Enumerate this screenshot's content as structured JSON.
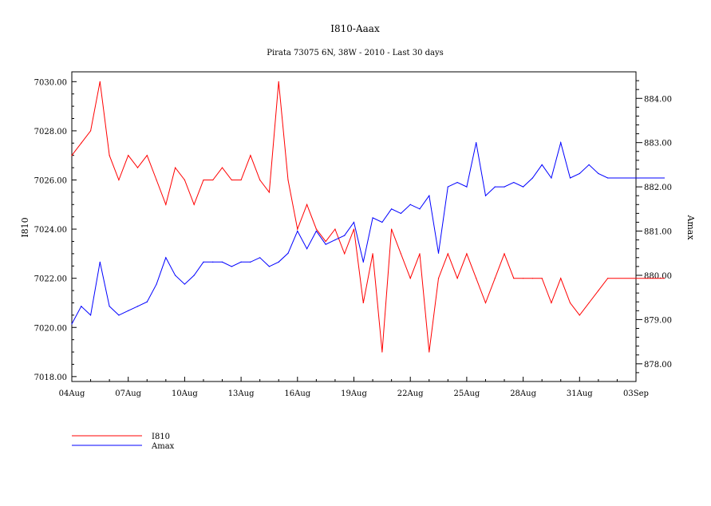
{
  "chart_data": {
    "type": "line",
    "title": "I810-Aaax",
    "subtitle": "Pirata 73075 6N, 38W - 2010 - Last 30 days",
    "xlabel": "",
    "ylabel": "I810",
    "y2label": "Amax",
    "xlim": [
      0,
      30
    ],
    "x_unit": "days since 04Aug",
    "xticks": [
      {
        "x": 0,
        "label": "04Aug"
      },
      {
        "x": 3,
        "label": "07Aug"
      },
      {
        "x": 6,
        "label": "10Aug"
      },
      {
        "x": 9,
        "label": "13Aug"
      },
      {
        "x": 12,
        "label": "16Aug"
      },
      {
        "x": 15,
        "label": "19Aug"
      },
      {
        "x": 18,
        "label": "22Aug"
      },
      {
        "x": 21,
        "label": "25Aug"
      },
      {
        "x": 24,
        "label": "28Aug"
      },
      {
        "x": 27,
        "label": "31Aug"
      },
      {
        "x": 30,
        "label": "03Sep"
      }
    ],
    "ylim": [
      7017.8,
      7030.4
    ],
    "yticks": [
      "7018.00",
      "7020.00",
      "7022.00",
      "7024.00",
      "7026.00",
      "7028.00",
      "7030.00"
    ],
    "y2lim": [
      877.6,
      884.6
    ],
    "y2ticks": [
      "878.00",
      "879.00",
      "880.00",
      "881.00",
      "882.00",
      "883.00",
      "884.00"
    ],
    "legend_position": "bottom-left",
    "series": [
      {
        "name": "I810",
        "axis": "left",
        "color": "#ff0000",
        "x": [
          0,
          0.5,
          1,
          1.5,
          2,
          2.5,
          3,
          3.5,
          4,
          4.5,
          5,
          5.5,
          6,
          6.5,
          7,
          7.5,
          8,
          8.5,
          9,
          9.5,
          10,
          10.5,
          11,
          11.5,
          12,
          12.5,
          13,
          13.5,
          14,
          14.5,
          15,
          15.5,
          16,
          16.5,
          17,
          17.5,
          18,
          18.5,
          19,
          19.5,
          20,
          20.5,
          21,
          21.5,
          22,
          22.5,
          23,
          23.5,
          24,
          24.5,
          25,
          25.5,
          26,
          26.5,
          27,
          27.5,
          28,
          28.5,
          31.5
        ],
        "values": [
          7027,
          7027.5,
          7028,
          7030,
          7027,
          7026,
          7027,
          7026.5,
          7027,
          7026,
          7025,
          7026.5,
          7026,
          7025,
          7026,
          7026,
          7026.5,
          7026,
          7026,
          7027,
          7026,
          7025.5,
          7030,
          7026,
          7024,
          7025,
          7024,
          7023.5,
          7024,
          7023,
          7024,
          7021,
          7023,
          7019,
          7024,
          7023,
          7022,
          7023,
          7019,
          7022,
          7023,
          7022,
          7023,
          7022,
          7021,
          7022,
          7023,
          7022,
          7022,
          7022,
          7022,
          7021,
          7022,
          7021,
          7020.5,
          7021,
          7021.5,
          7022,
          7022
        ]
      },
      {
        "name": "Amax",
        "axis": "right",
        "color": "#0000ff",
        "x": [
          0,
          0.5,
          1,
          1.5,
          2,
          2.5,
          3,
          3.5,
          4,
          4.5,
          5,
          5.5,
          6,
          6.5,
          7,
          7.5,
          8,
          8.5,
          9,
          9.5,
          10,
          10.5,
          11,
          11.5,
          12,
          12.5,
          13,
          13.5,
          14,
          14.5,
          15,
          15.5,
          16,
          16.5,
          17,
          17.5,
          18,
          18.5,
          19,
          19.5,
          20,
          20.5,
          21,
          21.5,
          22,
          22.5,
          23,
          23.5,
          24,
          24.5,
          25,
          25.5,
          26,
          26.5,
          27,
          27.5,
          28,
          28.5,
          31.5
        ],
        "values": [
          878.9,
          879.3,
          879.1,
          880.3,
          879.3,
          879.1,
          879.2,
          879.3,
          879.4,
          879.8,
          880.4,
          880,
          879.8,
          880,
          880.3,
          880.3,
          880.3,
          880.2,
          880.3,
          880.3,
          880.4,
          880.2,
          880.3,
          880.5,
          881,
          880.6,
          881,
          880.7,
          880.8,
          880.9,
          881.2,
          880.3,
          881.3,
          881.2,
          881.5,
          881.4,
          881.6,
          881.5,
          881.8,
          880.5,
          882,
          882.1,
          882,
          883,
          881.8,
          882,
          882,
          882.1,
          882,
          882.2,
          882.5,
          882.2,
          883,
          882.2,
          882.3,
          882.5,
          882.3,
          882.2,
          882.2
        ]
      }
    ]
  }
}
